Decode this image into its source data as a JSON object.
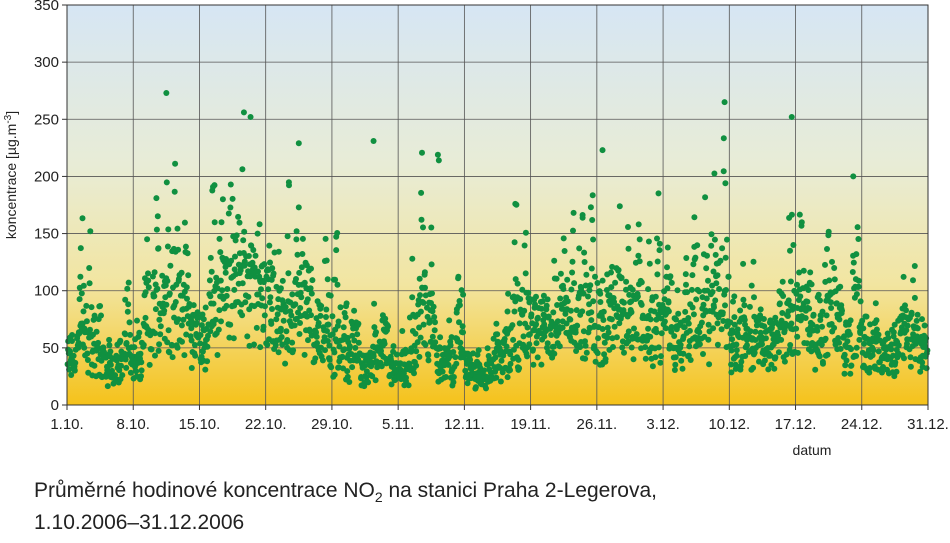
{
  "caption": {
    "line1_prefix": "Průměrné hodinové koncentrace NO",
    "line1_sub": "2",
    "line1_suffix": " na stanici Praha 2-Legerova,",
    "line2": "1.10.2006–31.12.2006"
  },
  "chart_data": {
    "type": "scatter",
    "xlabel": "datum",
    "ylabel_prefix": "koncentrace [µg.m",
    "ylabel_sup": "-3",
    "ylabel_suffix": "]",
    "ylim": [
      0,
      350
    ],
    "yticks": [
      0,
      50,
      100,
      150,
      200,
      250,
      300,
      350
    ],
    "xlim": [
      0,
      91
    ],
    "xticks": [
      {
        "pos": 0,
        "label": "1.10."
      },
      {
        "pos": 7,
        "label": "8.10."
      },
      {
        "pos": 14,
        "label": "15.10."
      },
      {
        "pos": 21,
        "label": "22.10."
      },
      {
        "pos": 28,
        "label": "29.10."
      },
      {
        "pos": 35,
        "label": "5.11."
      },
      {
        "pos": 42,
        "label": "12.11."
      },
      {
        "pos": 49,
        "label": "19.11."
      },
      {
        "pos": 56,
        "label": "26.11."
      },
      {
        "pos": 63,
        "label": "3.12."
      },
      {
        "pos": 70,
        "label": "10.12."
      },
      {
        "pos": 77,
        "label": "17.12."
      },
      {
        "pos": 84,
        "label": "24.12."
      },
      {
        "pos": 91,
        "label": "31.12."
      }
    ],
    "grid": true,
    "background_gradient": [
      "#d6e6f4",
      "#e8ecd6",
      "#f2e5a0",
      "#f5c21a"
    ],
    "marker_color": "#109040",
    "daily_base": [
      40,
      55,
      48,
      40,
      30,
      35,
      45,
      35,
      60,
      75,
      90,
      75,
      85,
      60,
      55,
      80,
      95,
      110,
      105,
      100,
      95,
      90,
      75,
      70,
      95,
      85,
      70,
      55,
      45,
      40,
      55,
      30,
      35,
      50,
      30,
      25,
      30,
      75,
      60,
      40,
      30,
      60,
      35,
      25,
      28,
      35,
      45,
      55,
      70,
      65,
      65,
      65,
      85,
      90,
      75,
      65,
      65,
      85,
      70,
      75,
      80,
      60,
      65,
      85,
      55,
      55,
      70,
      65,
      90,
      75,
      50,
      55,
      45,
      55,
      55,
      70,
      65,
      75,
      80,
      55,
      75,
      65,
      50,
      75,
      55,
      50,
      45,
      50,
      60,
      55,
      55
    ],
    "daily_peak": [
      80,
      200,
      160,
      110,
      60,
      80,
      140,
      90,
      150,
      200,
      270,
      225,
      170,
      110,
      110,
      220,
      250,
      255,
      225,
      150,
      180,
      225,
      130,
      225,
      200,
      140,
      80,
      225,
      200,
      100,
      80,
      60,
      80,
      100,
      60,
      70,
      140,
      215,
      145,
      70,
      90,
      140,
      60,
      45,
      50,
      80,
      110,
      190,
      150,
      110,
      110,
      150,
      175,
      170,
      195,
      220,
      150,
      140,
      200,
      200,
      190,
      150,
      200,
      150,
      120,
      150,
      200,
      185,
      220,
      265,
      110,
      125,
      160,
      100,
      80,
      110,
      250,
      230,
      140,
      90,
      180,
      160,
      100,
      200,
      110,
      80,
      60,
      90,
      110,
      135,
      90
    ],
    "extremes": [
      {
        "x": 10.5,
        "y": 273
      },
      {
        "x": 18.7,
        "y": 256
      },
      {
        "x": 19.4,
        "y": 252
      },
      {
        "x": 69.5,
        "y": 265
      },
      {
        "x": 76.6,
        "y": 252
      },
      {
        "x": 39.2,
        "y": 219
      },
      {
        "x": 39.3,
        "y": 214
      },
      {
        "x": 24.5,
        "y": 229
      },
      {
        "x": 32.4,
        "y": 231
      },
      {
        "x": 56.6,
        "y": 223
      },
      {
        "x": 83.1,
        "y": 200
      }
    ]
  }
}
